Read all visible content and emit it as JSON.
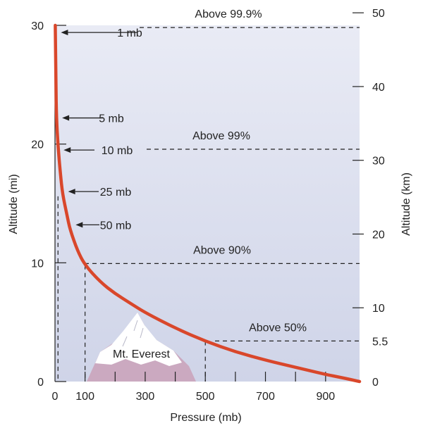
{
  "chart_data": {
    "type": "line",
    "xlabel": "Pressure (mb)",
    "ylabel_left": "Altitude (mi)",
    "ylabel_right": "Altitude (km)",
    "xlim": [
      0,
      1013
    ],
    "ylim_mi": [
      0,
      30
    ],
    "ylim_km": [
      0,
      48.3
    ],
    "x_ticks": [
      {
        "value": 0,
        "label": "0"
      },
      {
        "value": 100,
        "label": "100"
      },
      {
        "value": 300,
        "label": "300"
      },
      {
        "value": 500,
        "label": "500"
      },
      {
        "value": 700,
        "label": "700"
      },
      {
        "value": 900,
        "label": "900"
      }
    ],
    "x_minor_ticks": [
      200,
      400,
      600,
      800
    ],
    "y_left_ticks": [
      {
        "value": 0,
        "label": "0"
      },
      {
        "value": 10,
        "label": "10"
      },
      {
        "value": 20,
        "label": "20"
      },
      {
        "value": 30,
        "label": "30"
      }
    ],
    "y_right_ticks": [
      {
        "value": 0,
        "label": "0"
      },
      {
        "value": 5.5,
        "label": "5.5"
      },
      {
        "value": 10,
        "label": "10"
      },
      {
        "value": 20,
        "label": "20"
      },
      {
        "value": 30,
        "label": "30"
      },
      {
        "value": 40,
        "label": "40"
      },
      {
        "value": 50,
        "label": "50"
      }
    ],
    "series": [
      {
        "points": [
          {
            "x": 1013,
            "y": 0
          },
          {
            "x": 950,
            "y": 0.35
          },
          {
            "x": 900,
            "y": 0.6
          },
          {
            "x": 800,
            "y": 1.2
          },
          {
            "x": 700,
            "y": 1.8
          },
          {
            "x": 600,
            "y": 2.5
          },
          {
            "x": 500,
            "y": 3.4
          },
          {
            "x": 400,
            "y": 4.5
          },
          {
            "x": 300,
            "y": 5.8
          },
          {
            "x": 250,
            "y": 6.6
          },
          {
            "x": 200,
            "y": 7.4
          },
          {
            "x": 150,
            "y": 8.4
          },
          {
            "x": 100,
            "y": 9.8
          },
          {
            "x": 75,
            "y": 11.0
          },
          {
            "x": 50,
            "y": 12.8
          },
          {
            "x": 40,
            "y": 14.0
          },
          {
            "x": 25,
            "y": 15.8
          },
          {
            "x": 18,
            "y": 17.5
          },
          {
            "x": 10,
            "y": 19.8
          },
          {
            "x": 5,
            "y": 22.2
          },
          {
            "x": 3,
            "y": 25.0
          },
          {
            "x": 1,
            "y": 30
          }
        ]
      }
    ],
    "pressure_labels": [
      {
        "text": "1 mb",
        "pressure": 1,
        "altitude_mi": 29.4
      },
      {
        "text": "5 mb",
        "pressure": 5,
        "altitude_mi": 22.2
      },
      {
        "text": "10 mb",
        "pressure": 10,
        "altitude_mi": 19.5
      },
      {
        "text": "25 mb",
        "pressure": 25,
        "altitude_mi": 16.0
      },
      {
        "text": "50 mb",
        "pressure": 50,
        "altitude_mi": 13.2
      }
    ],
    "mass_levels": [
      {
        "label": "Above 99.9%",
        "altitude_km": 48
      },
      {
        "label": "Above 99%",
        "altitude_km": 31.5
      },
      {
        "label": "Above 90%",
        "altitude_km": 16
      },
      {
        "label": "Above 50%",
        "altitude_km": 5.5
      }
    ],
    "vertical_guides": [
      {
        "pressure": 10,
        "to_altitude_mi": 15.6
      },
      {
        "pressure": 100,
        "to_altitude_mi": 9.8
      },
      {
        "pressure": 500,
        "to_altitude_mi": 3.4
      }
    ],
    "landmark": {
      "label": "Mt. Everest",
      "peak_pressure": 300,
      "peak_altitude_mi": 5.5
    },
    "colors": {
      "curve": "#d9472b",
      "sky_top": "#e9ebf5",
      "sky_bottom": "#cfd4e8",
      "mountain_base": "#cba9c0",
      "snow": "#ffffff",
      "axis": "#222222"
    }
  }
}
